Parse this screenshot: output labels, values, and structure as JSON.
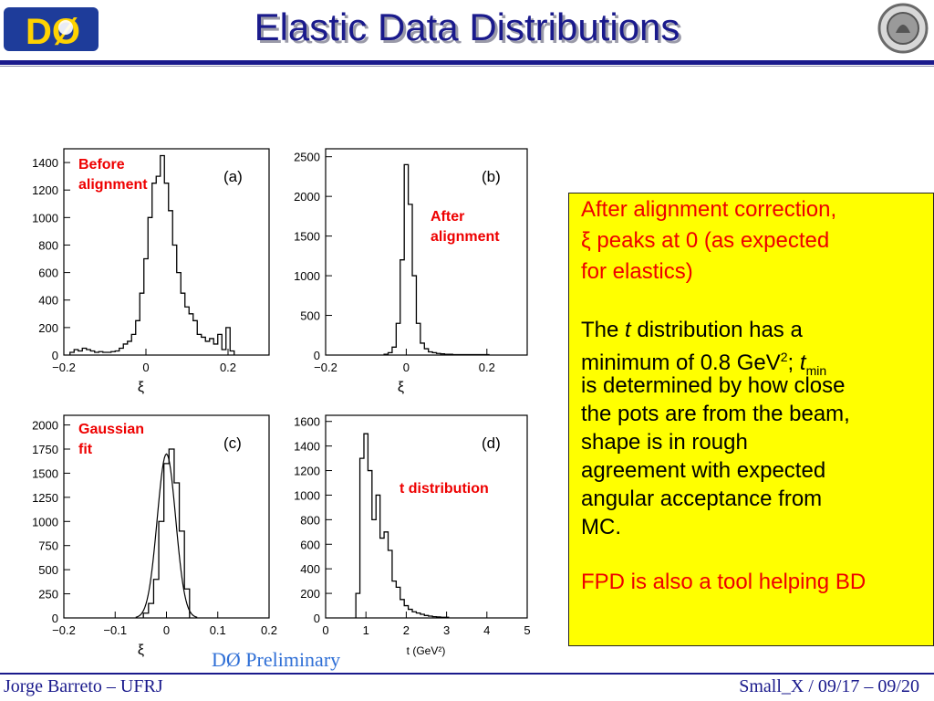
{
  "header": {
    "title": "Elastic Data Distributions",
    "logo_left": "DØ",
    "logo_right_icon": "seal-icon"
  },
  "annotations": {
    "a": "Before\nalignment",
    "b": "After\nalignment",
    "c": "Gaussian\nfit",
    "d": "t distribution"
  },
  "textbox": {
    "line1": "After alignment correction,",
    "line2_sym": "ξ",
    "line2": " peaks at 0 (as expected",
    "line3": "for elastics)",
    "line4_a": "The ",
    "line4_t": "t",
    "line4_b": " distribution has a",
    "line5_a": "minimum of 0.8 GeV",
    "line5_sup": "2",
    "line5_b": "; ",
    "line5_t": "t",
    "line5_sub": "min",
    "line6": "is determined by how close",
    "line7": "the pots are from the beam,",
    "line8": "shape is in rough",
    "line9": "agreement with expected",
    "line10": "angular acceptance from",
    "line11": "MC.",
    "line12": "FPD is also a tool helping BD"
  },
  "preliminary": "DØ Preliminary",
  "footer": {
    "left": "Jorge Barreto – UFRJ",
    "right": "Small_X / 09/17 – 09/20"
  },
  "chart_data": [
    {
      "type": "histogram",
      "panel_label": "(a)",
      "xlabel": "ξ",
      "xlim": [
        -0.2,
        0.3
      ],
      "ylim": [
        0,
        1500
      ],
      "xticks": [
        -0.2,
        0,
        0.2
      ],
      "xtick_labels": [
        "−0.2",
        "0",
        "0.2"
      ],
      "yticks": [
        0,
        200,
        400,
        600,
        800,
        1000,
        1200,
        1400
      ],
      "x": [
        -0.18,
        -0.17,
        -0.16,
        -0.15,
        -0.14,
        -0.13,
        -0.12,
        -0.11,
        -0.1,
        -0.09,
        -0.08,
        -0.07,
        -0.06,
        -0.05,
        -0.04,
        -0.03,
        -0.02,
        -0.01,
        0.0,
        0.01,
        0.02,
        0.03,
        0.04,
        0.05,
        0.06,
        0.07,
        0.08,
        0.09,
        0.1,
        0.11,
        0.12,
        0.13,
        0.14,
        0.15,
        0.16,
        0.17,
        0.18,
        0.19,
        0.2,
        0.21
      ],
      "values": [
        20,
        40,
        30,
        50,
        40,
        30,
        20,
        25,
        20,
        20,
        25,
        30,
        50,
        80,
        100,
        150,
        250,
        450,
        700,
        1000,
        1250,
        1300,
        1450,
        1250,
        1050,
        800,
        600,
        450,
        350,
        300,
        250,
        150,
        130,
        100,
        120,
        80,
        150,
        40,
        200,
        30
      ]
    },
    {
      "type": "histogram",
      "panel_label": "(b)",
      "xlabel": "ξ",
      "xlim": [
        -0.2,
        0.3
      ],
      "ylim": [
        0,
        2600
      ],
      "xticks": [
        -0.2,
        0,
        0.2
      ],
      "xtick_labels": [
        "−0.2",
        "0",
        "0.2"
      ],
      "yticks": [
        0,
        500,
        1000,
        1500,
        2000,
        2500
      ],
      "x": [
        -0.05,
        -0.04,
        -0.03,
        -0.02,
        -0.01,
        0.0,
        0.01,
        0.02,
        0.03,
        0.04,
        0.05,
        0.06,
        0.07,
        0.08,
        0.09,
        0.1,
        0.11,
        0.12,
        0.13,
        0.14,
        0.15,
        0.16,
        0.17,
        0.18,
        0.19,
        0.2
      ],
      "values": [
        10,
        30,
        100,
        400,
        1200,
        2400,
        1900,
        1000,
        400,
        150,
        80,
        40,
        30,
        20,
        15,
        10,
        10,
        5,
        5,
        5,
        5,
        5,
        5,
        5,
        5,
        5
      ]
    },
    {
      "type": "histogram",
      "panel_label": "(c)",
      "xlabel": "ξ",
      "xlim": [
        -0.2,
        0.2
      ],
      "ylim": [
        0,
        2100
      ],
      "xticks": [
        -0.2,
        -0.1,
        0,
        0.1,
        0.2
      ],
      "xtick_labels": [
        "−0.2",
        "−0.1",
        "0",
        "0.1",
        "0.2"
      ],
      "yticks": [
        0,
        250,
        500,
        750,
        1000,
        1250,
        1500,
        1750,
        2000
      ],
      "x": [
        -0.04,
        -0.03,
        -0.02,
        -0.01,
        0.0,
        0.01,
        0.02,
        0.03,
        0.04
      ],
      "values": [
        50,
        150,
        400,
        1000,
        1600,
        1750,
        1400,
        900,
        300
      ]
    },
    {
      "type": "histogram",
      "panel_label": "(d)",
      "xlabel": "t (GeV²)",
      "xlim": [
        0,
        5
      ],
      "ylim": [
        0,
        1650
      ],
      "xticks": [
        0,
        1,
        2,
        3,
        4,
        5
      ],
      "yticks": [
        0,
        200,
        400,
        600,
        800,
        1000,
        1200,
        1400,
        1600
      ],
      "x": [
        0.8,
        0.9,
        1.0,
        1.1,
        1.2,
        1.3,
        1.4,
        1.5,
        1.6,
        1.7,
        1.8,
        1.9,
        2.0,
        2.1,
        2.2,
        2.3,
        2.4,
        2.5,
        2.6,
        2.7,
        2.8,
        2.9,
        3.0
      ],
      "values": [
        200,
        1300,
        1500,
        1200,
        800,
        1000,
        650,
        700,
        550,
        300,
        250,
        150,
        100,
        70,
        50,
        40,
        30,
        20,
        15,
        10,
        8,
        5,
        5
      ]
    }
  ]
}
